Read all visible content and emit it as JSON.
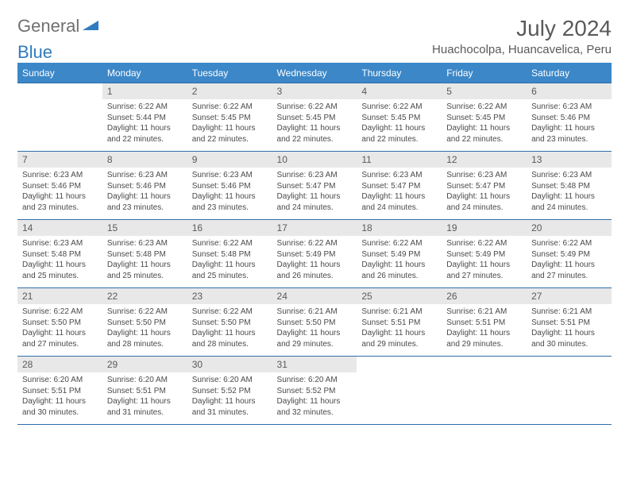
{
  "logo": {
    "text1": "General",
    "text2": "Blue",
    "color1": "#707070",
    "color2": "#2f7bbf"
  },
  "title": "July 2024",
  "location": "Huachocolpa, Huancavelica, Peru",
  "header_bg": "#3b87c8",
  "header_text_color": "#ffffff",
  "border_color": "#2f6fa8",
  "daynum_bg": "#e8e8e8",
  "text_color": "#4a4a4a",
  "background_color": "#ffffff",
  "fonts": {
    "title_size": 28,
    "location_size": 15,
    "header_size": 12,
    "daynum_size": 12,
    "body_size": 10
  },
  "weekdays": [
    "Sunday",
    "Monday",
    "Tuesday",
    "Wednesday",
    "Thursday",
    "Friday",
    "Saturday"
  ],
  "weeks": [
    [
      null,
      {
        "n": "1",
        "sr": "6:22 AM",
        "ss": "5:44 PM",
        "dl": "11 hours and 22 minutes."
      },
      {
        "n": "2",
        "sr": "6:22 AM",
        "ss": "5:45 PM",
        "dl": "11 hours and 22 minutes."
      },
      {
        "n": "3",
        "sr": "6:22 AM",
        "ss": "5:45 PM",
        "dl": "11 hours and 22 minutes."
      },
      {
        "n": "4",
        "sr": "6:22 AM",
        "ss": "5:45 PM",
        "dl": "11 hours and 22 minutes."
      },
      {
        "n": "5",
        "sr": "6:22 AM",
        "ss": "5:45 PM",
        "dl": "11 hours and 22 minutes."
      },
      {
        "n": "6",
        "sr": "6:23 AM",
        "ss": "5:46 PM",
        "dl": "11 hours and 23 minutes."
      }
    ],
    [
      {
        "n": "7",
        "sr": "6:23 AM",
        "ss": "5:46 PM",
        "dl": "11 hours and 23 minutes."
      },
      {
        "n": "8",
        "sr": "6:23 AM",
        "ss": "5:46 PM",
        "dl": "11 hours and 23 minutes."
      },
      {
        "n": "9",
        "sr": "6:23 AM",
        "ss": "5:46 PM",
        "dl": "11 hours and 23 minutes."
      },
      {
        "n": "10",
        "sr": "6:23 AM",
        "ss": "5:47 PM",
        "dl": "11 hours and 24 minutes."
      },
      {
        "n": "11",
        "sr": "6:23 AM",
        "ss": "5:47 PM",
        "dl": "11 hours and 24 minutes."
      },
      {
        "n": "12",
        "sr": "6:23 AM",
        "ss": "5:47 PM",
        "dl": "11 hours and 24 minutes."
      },
      {
        "n": "13",
        "sr": "6:23 AM",
        "ss": "5:48 PM",
        "dl": "11 hours and 24 minutes."
      }
    ],
    [
      {
        "n": "14",
        "sr": "6:23 AM",
        "ss": "5:48 PM",
        "dl": "11 hours and 25 minutes."
      },
      {
        "n": "15",
        "sr": "6:23 AM",
        "ss": "5:48 PM",
        "dl": "11 hours and 25 minutes."
      },
      {
        "n": "16",
        "sr": "6:22 AM",
        "ss": "5:48 PM",
        "dl": "11 hours and 25 minutes."
      },
      {
        "n": "17",
        "sr": "6:22 AM",
        "ss": "5:49 PM",
        "dl": "11 hours and 26 minutes."
      },
      {
        "n": "18",
        "sr": "6:22 AM",
        "ss": "5:49 PM",
        "dl": "11 hours and 26 minutes."
      },
      {
        "n": "19",
        "sr": "6:22 AM",
        "ss": "5:49 PM",
        "dl": "11 hours and 27 minutes."
      },
      {
        "n": "20",
        "sr": "6:22 AM",
        "ss": "5:49 PM",
        "dl": "11 hours and 27 minutes."
      }
    ],
    [
      {
        "n": "21",
        "sr": "6:22 AM",
        "ss": "5:50 PM",
        "dl": "11 hours and 27 minutes."
      },
      {
        "n": "22",
        "sr": "6:22 AM",
        "ss": "5:50 PM",
        "dl": "11 hours and 28 minutes."
      },
      {
        "n": "23",
        "sr": "6:22 AM",
        "ss": "5:50 PM",
        "dl": "11 hours and 28 minutes."
      },
      {
        "n": "24",
        "sr": "6:21 AM",
        "ss": "5:50 PM",
        "dl": "11 hours and 29 minutes."
      },
      {
        "n": "25",
        "sr": "6:21 AM",
        "ss": "5:51 PM",
        "dl": "11 hours and 29 minutes."
      },
      {
        "n": "26",
        "sr": "6:21 AM",
        "ss": "5:51 PM",
        "dl": "11 hours and 29 minutes."
      },
      {
        "n": "27",
        "sr": "6:21 AM",
        "ss": "5:51 PM",
        "dl": "11 hours and 30 minutes."
      }
    ],
    [
      {
        "n": "28",
        "sr": "6:20 AM",
        "ss": "5:51 PM",
        "dl": "11 hours and 30 minutes."
      },
      {
        "n": "29",
        "sr": "6:20 AM",
        "ss": "5:51 PM",
        "dl": "11 hours and 31 minutes."
      },
      {
        "n": "30",
        "sr": "6:20 AM",
        "ss": "5:52 PM",
        "dl": "11 hours and 31 minutes."
      },
      {
        "n": "31",
        "sr": "6:20 AM",
        "ss": "5:52 PM",
        "dl": "11 hours and 32 minutes."
      },
      null,
      null,
      null
    ]
  ],
  "labels": {
    "sunrise": "Sunrise:",
    "sunset": "Sunset:",
    "daylight": "Daylight:"
  }
}
